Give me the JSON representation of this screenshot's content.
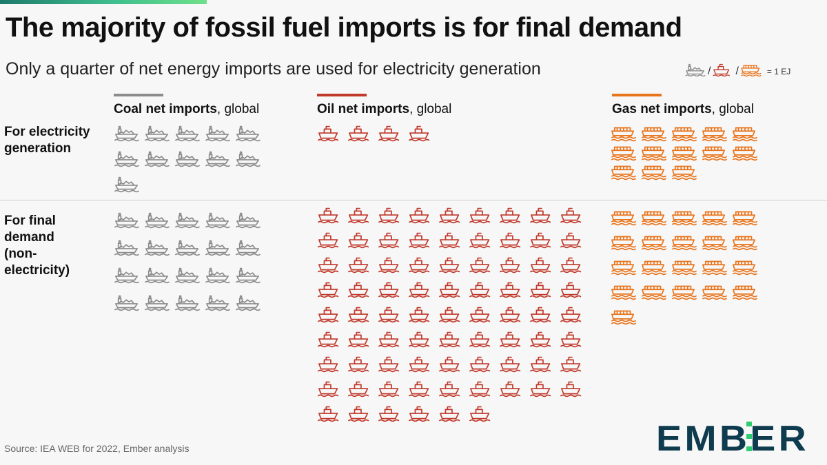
{
  "header": {
    "title": "The majority of fossil fuel imports is for final demand",
    "subtitle": "Only a quarter of net energy imports are used for electricity generation"
  },
  "legend": {
    "slash": "/",
    "unit_label": "= 1 EJ",
    "icons": [
      "coal-ship-icon",
      "oil-tanker-icon",
      "gas-carrier-icon"
    ]
  },
  "rows": {
    "electricity": "For electricity generation",
    "final": "For final demand (non-electricity)"
  },
  "columns": {
    "coal": {
      "bold": "Coal net imports",
      "rest": ", global"
    },
    "oil": {
      "bold": "Oil net imports",
      "rest": ", global"
    },
    "gas": {
      "bold": "Gas net imports",
      "rest": ", global"
    }
  },
  "colors": {
    "coal": "#8c8c8c",
    "oil": "#c0392b",
    "gas": "#e8741c",
    "ember_text": "#0f3b4f",
    "ember_accent": "#2ecc71"
  },
  "chart_data": {
    "type": "table",
    "unit": "EJ",
    "categories": [
      "For electricity generation",
      "For final demand (non-electricity)"
    ],
    "series": [
      {
        "name": "Coal net imports, global",
        "values": [
          11,
          20
        ]
      },
      {
        "name": "Oil net imports, global",
        "values": [
          4,
          78
        ]
      },
      {
        "name": "Gas net imports, global",
        "values": [
          13,
          21
        ]
      }
    ]
  },
  "footer": {
    "source": "Source: IEA WEB for 2022, Ember analysis",
    "logo_text": "EMBER"
  }
}
